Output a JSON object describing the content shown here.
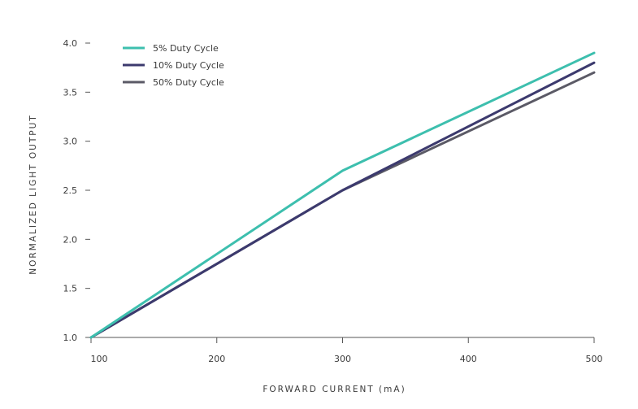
{
  "chart_data": {
    "type": "line",
    "xlabel": "FORWARD CURRENT (mA)",
    "ylabel": "NORMALIZED LIGHT OUTPUT",
    "x": [
      100,
      300,
      500
    ],
    "xlim": [
      100,
      500
    ],
    "ylim": [
      1.0,
      4.0
    ],
    "xticks": [
      100,
      200,
      300,
      400,
      500
    ],
    "yticks": [
      1.0,
      1.5,
      2.0,
      2.5,
      3.0,
      3.5,
      4.0
    ],
    "xtick_labels": [
      "100",
      "200",
      "300",
      "400",
      "500"
    ],
    "ytick_labels": [
      "1.0",
      "1.5",
      "2.0",
      "2.5",
      "3.0",
      "3.5",
      "4.0"
    ],
    "grid": false,
    "legend_position": "top-left",
    "series": [
      {
        "name": "5% Duty Cycle",
        "color": "#3dbfae",
        "values": [
          1.0,
          2.7,
          3.9
        ]
      },
      {
        "name": "10% Duty Cycle",
        "color": "#3c3a6e",
        "values": [
          1.0,
          2.5,
          3.8
        ]
      },
      {
        "name": "50% Duty Cycle",
        "color": "#5b5a66",
        "values": [
          1.0,
          2.5,
          3.7
        ]
      }
    ]
  }
}
